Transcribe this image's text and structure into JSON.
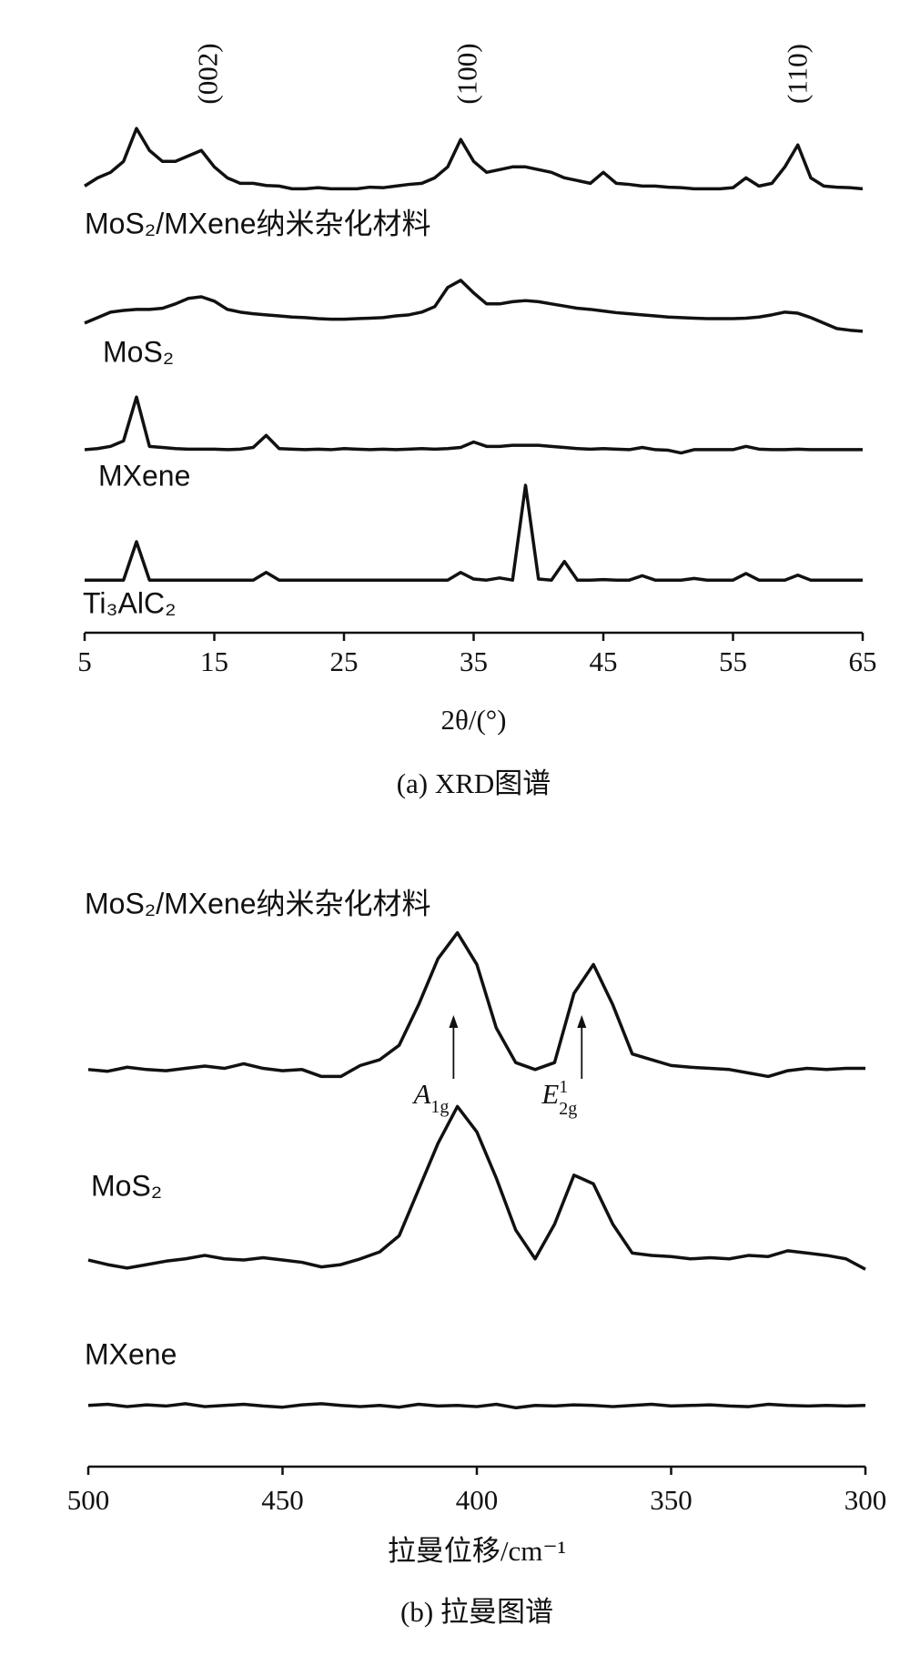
{
  "chart_data": [
    {
      "type": "line",
      "title": "(a) XRD图谱",
      "xlabel": "2θ/(°)",
      "xlim": [
        5,
        65
      ],
      "xticks": [
        5,
        15,
        25,
        35,
        45,
        55,
        65
      ],
      "ylim": [
        0,
        100
      ],
      "color": "#111111",
      "x": [
        5,
        6,
        7,
        8,
        9,
        10,
        11,
        12,
        13,
        14,
        15,
        16,
        17,
        18,
        19,
        20,
        21,
        22,
        23,
        24,
        25,
        26,
        27,
        28,
        29,
        30,
        31,
        32,
        33,
        34,
        35,
        36,
        37,
        38,
        39,
        40,
        41,
        42,
        43,
        44,
        45,
        46,
        47,
        48,
        49,
        50,
        51,
        52,
        53,
        54,
        55,
        56,
        57,
        58,
        59,
        60,
        61,
        62,
        63,
        64,
        65
      ],
      "series": [
        {
          "name": "MoS₂/MXene纳米杂化材料",
          "values": [
            81.5,
            83,
            84,
            86,
            92,
            88,
            86,
            86,
            87,
            88,
            85,
            83,
            82,
            82,
            81.6,
            81.5,
            81,
            81,
            81.2,
            81,
            81,
            81,
            81.3,
            81.2,
            81.5,
            81.8,
            82,
            83,
            85,
            90,
            86,
            84,
            84.5,
            85,
            85,
            84.5,
            84,
            83,
            82.5,
            82,
            84,
            82,
            81.8,
            81.5,
            81.5,
            81.3,
            81.2,
            81,
            81,
            81,
            81.2,
            83,
            81.5,
            82,
            85,
            89,
            83,
            81.5,
            81.3,
            81.2,
            81
          ]
        },
        {
          "name": "MoS₂",
          "values": [
            56.5,
            57.5,
            58.5,
            58.8,
            59,
            59,
            59.2,
            60,
            61,
            61.3,
            60.5,
            59,
            58.5,
            58.2,
            58,
            57.8,
            57.6,
            57.5,
            57.3,
            57.2,
            57.2,
            57.3,
            57.4,
            57.5,
            57.8,
            58,
            58.5,
            59.5,
            63,
            64.3,
            62,
            60,
            60,
            60.4,
            60.6,
            60.4,
            60,
            59.6,
            59.2,
            59,
            58.7,
            58.4,
            58.2,
            58,
            57.8,
            57.6,
            57.5,
            57.4,
            57.3,
            57.3,
            57.3,
            57.4,
            57.6,
            58,
            58.5,
            58.3,
            57.5,
            56.5,
            55.5,
            55.2,
            55
          ]
        },
        {
          "name": "MXene",
          "values": [
            33.4,
            33.6,
            34,
            35,
            43,
            34,
            33.8,
            33.6,
            33.5,
            33.5,
            33.5,
            33.4,
            33.5,
            33.8,
            36,
            33.6,
            33.5,
            33.4,
            33.5,
            33.4,
            33.6,
            33.5,
            33.4,
            33.5,
            33.4,
            33.5,
            33.6,
            33.5,
            33.6,
            33.8,
            34.8,
            34,
            34,
            34.2,
            34.2,
            34.2,
            34,
            33.8,
            33.6,
            33.5,
            33.6,
            33.5,
            33.4,
            33.8,
            33.4,
            33.3,
            32.8,
            33.4,
            33.4,
            33.4,
            33.4,
            34,
            33.5,
            33.4,
            33.4,
            33.5,
            33.4,
            33.4,
            33.4,
            33.4,
            33.4
          ]
        },
        {
          "name": "Ti₃AlC₂",
          "values": [
            9.6,
            9.6,
            9.6,
            9.6,
            16.6,
            9.6,
            9.6,
            9.6,
            9.6,
            9.6,
            9.6,
            9.6,
            9.6,
            9.6,
            11,
            9.6,
            9.6,
            9.6,
            9.6,
            9.6,
            9.6,
            9.6,
            9.6,
            9.6,
            9.6,
            9.6,
            9.6,
            9.6,
            9.6,
            11,
            9.8,
            9.6,
            10,
            9.6,
            26.9,
            9.8,
            9.6,
            13,
            9.6,
            9.6,
            9.7,
            9.6,
            9.6,
            10.4,
            9.6,
            9.6,
            9.6,
            9.9,
            9.6,
            9.6,
            9.6,
            10.8,
            9.6,
            9.6,
            9.6,
            10.5,
            9.6,
            9.6,
            9.6,
            9.6,
            9.6
          ]
        }
      ],
      "annotations": [
        {
          "text": "(002)",
          "x": 14
        },
        {
          "text": "(100)",
          "x": 34
        },
        {
          "text": "(110)",
          "x": 59.5
        }
      ]
    },
    {
      "type": "line",
      "title": "(b) 拉曼图谱",
      "xlabel": "拉曼位移/cm⁻¹",
      "xlim": [
        500,
        300
      ],
      "xticks": [
        500,
        450,
        400,
        350,
        300
      ],
      "ylim": [
        0,
        100
      ],
      "color": "#111111",
      "x": [
        500,
        495,
        490,
        485,
        480,
        475,
        470,
        465,
        460,
        455,
        450,
        445,
        440,
        435,
        430,
        425,
        420,
        415,
        410,
        405,
        400,
        395,
        390,
        385,
        380,
        375,
        370,
        365,
        360,
        355,
        350,
        345,
        340,
        335,
        330,
        325,
        320,
        315,
        310,
        305,
        300
      ],
      "series": [
        {
          "name": "MoS₂/MXene纳米杂化材料",
          "values": [
            68.8,
            68.5,
            69.2,
            68.8,
            68.6,
            69,
            69.4,
            69,
            69.8,
            69,
            68.6,
            68.8,
            67.6,
            67.6,
            69.5,
            70.5,
            73,
            80,
            88,
            92.5,
            87,
            76,
            70,
            68.8,
            70,
            82,
            87,
            80,
            71.5,
            70.5,
            69.5,
            69.2,
            69,
            68.8,
            68.2,
            67.6,
            68.6,
            69,
            68.8,
            69,
            69
          ]
        },
        {
          "name": "MoS₂",
          "values": [
            35.8,
            35,
            34.4,
            35,
            35.6,
            36,
            36.6,
            36,
            35.8,
            36.2,
            35.8,
            35.4,
            34.6,
            35,
            36,
            37.2,
            40,
            48,
            56,
            62.4,
            58,
            50,
            41,
            36,
            42,
            50.5,
            49,
            42,
            37,
            36.6,
            36.4,
            36,
            36.2,
            36,
            36.6,
            36.4,
            37.4,
            37,
            36.6,
            36,
            34.2
          ]
        },
        {
          "name": "MXene",
          "values": [
            10.6,
            10.8,
            10.4,
            10.7,
            10.5,
            10.9,
            10.4,
            10.6,
            10.8,
            10.5,
            10.3,
            10.7,
            10.9,
            10.6,
            10.4,
            10.6,
            10.3,
            10.8,
            10.5,
            10.6,
            10.4,
            10.8,
            10.2,
            10.6,
            10.5,
            10.7,
            10.6,
            10.4,
            10.6,
            10.8,
            10.5,
            10.6,
            10.7,
            10.5,
            10.4,
            10.8,
            10.6,
            10.5,
            10.6,
            10.5,
            10.6
          ]
        }
      ],
      "annotations": [
        {
          "text": "A",
          "sub": "1g",
          "x": 406
        },
        {
          "text": "E",
          "sub": "2g",
          "sup": "1",
          "x": 373
        }
      ]
    }
  ]
}
